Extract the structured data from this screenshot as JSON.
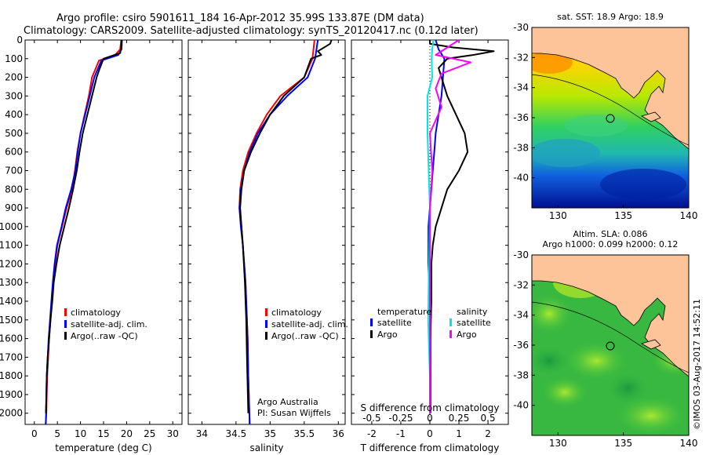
{
  "header": {
    "line1": "Argo profile: csiro 5901611_184 16-Apr-2012 35.99S 133.87E (DM data)",
    "line2": "Climatology: CARS2009. Satellite-adjusted climatology: synTS_20120417.nc (0.12d later)"
  },
  "chart_data": [
    {
      "type": "line",
      "xlabel": "temperature (deg C)",
      "ylabel": "",
      "xlim": [
        -2,
        32
      ],
      "ylim": [
        2060,
        0
      ],
      "xticks": [
        0,
        5,
        10,
        15,
        20,
        25,
        30
      ],
      "yticks": [
        0,
        100,
        200,
        300,
        400,
        500,
        600,
        700,
        800,
        900,
        1000,
        1100,
        1200,
        1300,
        1400,
        1500,
        1600,
        1700,
        1800,
        1900,
        2000
      ],
      "legend": [
        "climatology",
        "satellite-adj. clim.",
        "Argo(..raw -QC)"
      ],
      "series": [
        {
          "name": "climatology",
          "color": "#ff0000",
          "x": [
            18.8,
            18.6,
            17.5,
            14.0,
            12.5,
            11.8,
            10.9,
            10.0,
            9.3,
            8.8,
            8.2,
            7.0,
            6.0,
            5.0,
            4.5,
            4.1,
            3.8,
            3.5,
            3.2,
            3.0,
            2.8,
            2.7,
            2.6,
            2.5,
            2.45
          ],
          "y": [
            0,
            50,
            80,
            110,
            200,
            300,
            400,
            500,
            600,
            700,
            800,
            900,
            1000,
            1100,
            1200,
            1300,
            1400,
            1500,
            1600,
            1700,
            1800,
            1900,
            2000,
            2040,
            2060
          ]
        },
        {
          "name": "satellite-adj. clim.",
          "color": "#0000ff",
          "x": [
            19.0,
            18.9,
            18.2,
            14.5,
            13.0,
            12.0,
            11.0,
            10.0,
            9.4,
            8.9,
            8.0,
            6.8,
            5.9,
            4.9,
            4.4,
            4.0,
            3.7,
            3.4,
            3.1,
            2.9,
            2.7,
            2.6,
            2.55,
            2.5,
            2.45
          ],
          "y": [
            0,
            50,
            80,
            110,
            200,
            300,
            400,
            500,
            600,
            700,
            800,
            900,
            1000,
            1100,
            1200,
            1300,
            1400,
            1500,
            1600,
            1700,
            1800,
            1900,
            2000,
            2040,
            2060
          ]
        },
        {
          "name": "Argo(..raw -QC)",
          "color": "#000000",
          "x": [
            18.9,
            18.9,
            18.8,
            18.6,
            15.0,
            14.2,
            13.5,
            12.5,
            11.5,
            10.5,
            9.8,
            9.2,
            8.8,
            8.4,
            7.5,
            6.5,
            5.5,
            4.8,
            4.2,
            3.9,
            3.5,
            3.2,
            2.9,
            2.7,
            2.6,
            2.5
          ],
          "y": [
            0,
            20,
            40,
            70,
            100,
            150,
            200,
            300,
            400,
            500,
            600,
            700,
            750,
            800,
            900,
            1000,
            1100,
            1200,
            1300,
            1400,
            1500,
            1600,
            1700,
            1800,
            1900,
            2000
          ]
        }
      ]
    },
    {
      "type": "line",
      "xlabel": "salinity",
      "xlim": [
        33.8,
        36.1
      ],
      "ylim": [
        2060,
        0
      ],
      "xticks": [
        34,
        34.5,
        35,
        35.5,
        36
      ],
      "legend": [
        "climatology",
        "satellite-adj. clim.",
        "Argo(..raw -QC)"
      ],
      "annotation": [
        "Argo Australia",
        "PI: Susan Wijffels"
      ],
      "series": [
        {
          "name": "climatology",
          "color": "#ff0000",
          "x": [
            35.65,
            35.62,
            35.5,
            35.15,
            34.95,
            34.8,
            34.68,
            34.6,
            34.56,
            34.55,
            34.58,
            34.6,
            34.62,
            34.64,
            34.65,
            34.66,
            34.67,
            34.68,
            34.7
          ],
          "y": [
            0,
            100,
            200,
            300,
            400,
            500,
            600,
            700,
            800,
            900,
            1000,
            1100,
            1200,
            1300,
            1400,
            1500,
            1600,
            1800,
            2060
          ]
        },
        {
          "name": "satellite-adj. clim.",
          "color": "#0000ff",
          "x": [
            35.7,
            35.66,
            35.55,
            35.25,
            35.0,
            34.82,
            34.7,
            34.62,
            34.57,
            34.55,
            34.57,
            34.6,
            34.62,
            34.64,
            34.65,
            34.66,
            34.67,
            34.68,
            34.7
          ],
          "y": [
            0,
            100,
            200,
            300,
            400,
            500,
            600,
            700,
            800,
            900,
            1000,
            1100,
            1200,
            1300,
            1400,
            1500,
            1600,
            1800,
            2060
          ]
        },
        {
          "name": "Argo(..raw -QC)",
          "color": "#000000",
          "x": [
            35.9,
            35.88,
            35.7,
            35.75,
            35.6,
            35.5,
            35.2,
            35.0,
            34.85,
            34.72,
            34.62,
            34.58,
            34.56,
            34.6,
            34.63,
            34.64,
            34.65,
            34.66,
            34.68
          ],
          "y": [
            0,
            20,
            60,
            80,
            100,
            200,
            300,
            400,
            500,
            600,
            700,
            800,
            900,
            1100,
            1300,
            1400,
            1500,
            1700,
            2000
          ]
        }
      ]
    },
    {
      "type": "line",
      "xlabel": "T difference from climatology",
      "x2label": "S difference from climatology",
      "xlim": [
        -2.7,
        2.7
      ],
      "ylim": [
        2060,
        0
      ],
      "xticks": [
        -2,
        -1,
        0,
        1,
        2
      ],
      "x2ticks": [
        -0.5,
        -0.25,
        0,
        0.25,
        0.5
      ],
      "legend": [
        "temperature",
        "satellite",
        "Argo",
        "salinity",
        "satellite",
        "Argo"
      ],
      "series": [
        {
          "name": "temperature satellite",
          "color": "#0000ff",
          "x": [
            0.2,
            0.3,
            0.5,
            0.45,
            0.4,
            0.3,
            0.2,
            0.15,
            0.1,
            0.05,
            0.0,
            -0.05,
            -0.05,
            0.0,
            0.0,
            0.0,
            0.0
          ],
          "y": [
            0,
            50,
            100,
            200,
            300,
            400,
            500,
            600,
            700,
            800,
            900,
            1000,
            1200,
            1400,
            1600,
            1800,
            2000
          ]
        },
        {
          "name": "temperature Argo",
          "color": "#000000",
          "x": [
            0.0,
            0.0,
            0.8,
            2.2,
            1.5,
            0.6,
            0.3,
            0.4,
            0.6,
            0.9,
            1.2,
            1.3,
            1.0,
            0.6,
            0.2,
            0.1,
            0.05,
            0.05,
            0.02,
            0.02,
            0.02
          ],
          "y": [
            0,
            20,
            40,
            60,
            80,
            100,
            150,
            200,
            300,
            400,
            500,
            600,
            700,
            800,
            1000,
            1100,
            1200,
            1400,
            1600,
            1800,
            2000
          ]
        },
        {
          "name": "salinity satellite",
          "color": "#00e5e5",
          "x": [
            0.03,
            0.02,
            0.015,
            0.02,
            -0.02,
            -0.02,
            -0.01,
            0.0,
            -0.005,
            -0.01,
            -0.015,
            0.0,
            0.0
          ],
          "y": [
            0,
            50,
            100,
            200,
            300,
            500,
            700,
            900,
            1100,
            1300,
            1500,
            1800,
            2000
          ]
        },
        {
          "name": "salinity Argo",
          "color": "#ff00ff",
          "x": [
            0.25,
            0.15,
            0.05,
            0.35,
            0.1,
            0.05,
            0.1,
            0.0,
            0.02,
            0.0,
            0.0,
            0.0,
            0.0
          ],
          "y": [
            0,
            40,
            80,
            120,
            180,
            260,
            360,
            500,
            700,
            900,
            1200,
            1600,
            2000
          ]
        }
      ]
    },
    {
      "type": "heatmap",
      "title": "sat. SST: 18.9  Argo: 18.9",
      "xticks": [
        130,
        135,
        140
      ],
      "yticks": [
        -30,
        -32,
        -34,
        -36,
        -38,
        -40
      ],
      "xlim": [
        128,
        140
      ],
      "ylim": [
        -42,
        -30
      ],
      "marker": [
        133.87,
        -35.99
      ]
    },
    {
      "type": "heatmap",
      "title": "Altim. SLA: 0.086",
      "subtitle": "Argo h1000: 0.099 h2000: 0.12",
      "xticks": [
        130,
        135,
        140
      ],
      "yticks": [
        -30,
        -32,
        -34,
        -36,
        -38,
        -40
      ],
      "xlim": [
        128,
        140
      ],
      "ylim": [
        -42,
        -30
      ],
      "marker": [
        133.87,
        -35.99
      ]
    }
  ],
  "credit": "©IMOS 03-Aug-2017 14:52:11"
}
